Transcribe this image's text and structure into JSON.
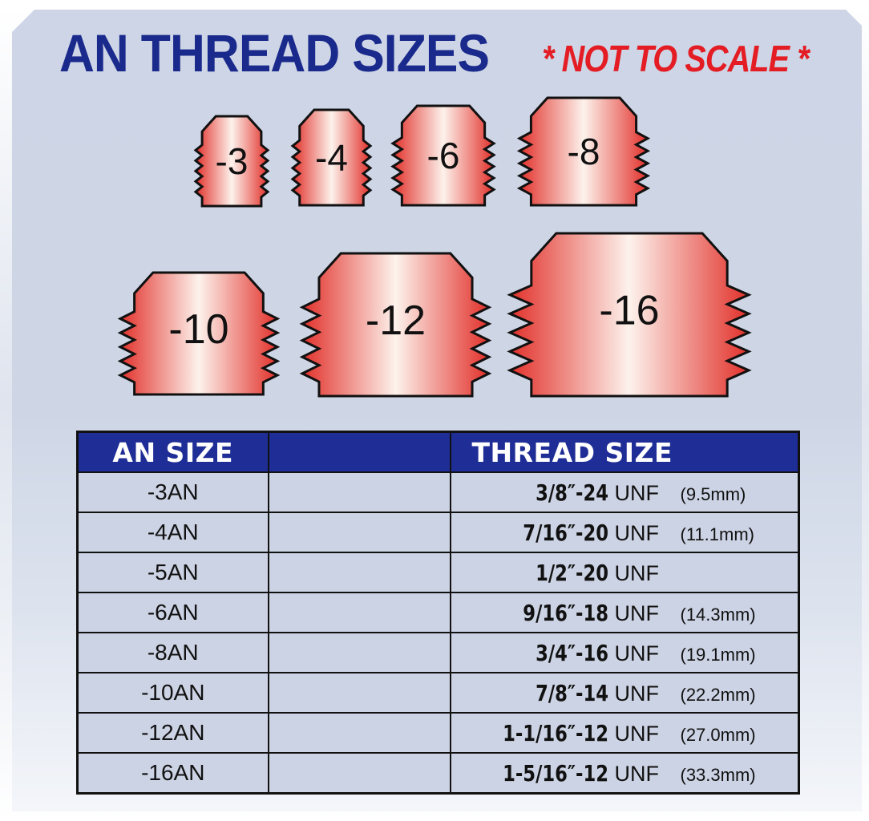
{
  "title": "AN THREAD SIZES",
  "note": "* NOT TO SCALE *",
  "colors": {
    "title": "#1a2a8c",
    "note": "#e41c23",
    "header_bg": "#1f2d96",
    "fitting_edge": "#e2302a",
    "fitting_center": "#fdf2ec"
  },
  "fittings": [
    {
      "label": "-3"
    },
    {
      "label": "-4"
    },
    {
      "label": "-6"
    },
    {
      "label": "-8"
    },
    {
      "label": "-10"
    },
    {
      "label": "-12"
    },
    {
      "label": "-16"
    }
  ],
  "table": {
    "headers": [
      "AN SIZE",
      "",
      "THREAD SIZE"
    ],
    "rows": [
      {
        "an": "-3AN",
        "thread": "3/8″-24",
        "unf": "UNF",
        "mm": "(9.5mm)"
      },
      {
        "an": "-4AN",
        "thread": "7/16″-20",
        "unf": "UNF",
        "mm": "(11.1mm)"
      },
      {
        "an": "-5AN",
        "thread": "1/2″-20",
        "unf": "UNF",
        "mm": ""
      },
      {
        "an": "-6AN",
        "thread": "9/16″-18",
        "unf": "UNF",
        "mm": "(14.3mm)"
      },
      {
        "an": "-8AN",
        "thread": "3/4″-16",
        "unf": "UNF",
        "mm": "(19.1mm)"
      },
      {
        "an": "-10AN",
        "thread": "7/8″-14",
        "unf": "UNF",
        "mm": "(22.2mm)"
      },
      {
        "an": "-12AN",
        "thread": "1-1/16″-12",
        "unf": "UNF",
        "mm": "(27.0mm)"
      },
      {
        "an": "-16AN",
        "thread": "1-5/16″-12",
        "unf": "UNF",
        "mm": "(33.3mm)"
      }
    ]
  }
}
